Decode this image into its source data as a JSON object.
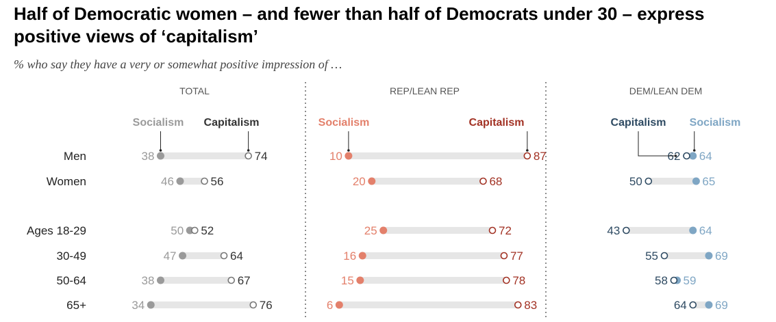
{
  "title": "Half of Democratic women – and fewer than half of Democrats under 30 – express positive views of ‘capitalism’",
  "subtitle": "% who say they have a very or somewhat positive impression of …",
  "colors": {
    "total": "#9a9a9a",
    "rep": "#e3806b",
    "rep_dark": "#a23224",
    "dem": "#2e4a62",
    "dem_light": "#7fa6c4",
    "bar": "#e6e6e6",
    "label": "#222222",
    "divider": "#666666"
  },
  "chart_data": {
    "type": "dot-plot",
    "categories": [
      "Men",
      "Women",
      "Ages 18-29",
      "30-49",
      "50-64",
      "65+"
    ],
    "panels": [
      {
        "id": "total",
        "title": "TOTAL",
        "series": [
          {
            "name": "Socialism",
            "values": [
              38,
              46,
              50,
              47,
              38,
              34
            ]
          },
          {
            "name": "Capitalism",
            "values": [
              74,
              56,
              52,
              64,
              67,
              76
            ]
          }
        ]
      },
      {
        "id": "rep",
        "title": "REP/LEAN REP",
        "series": [
          {
            "name": "Socialism",
            "values": [
              10,
              20,
              25,
              16,
              15,
              6
            ]
          },
          {
            "name": "Capitalism",
            "values": [
              87,
              68,
              72,
              77,
              78,
              83
            ]
          }
        ]
      },
      {
        "id": "dem",
        "title": "DEM/LEAN DEM",
        "series": [
          {
            "name": "Capitalism",
            "values": [
              62,
              50,
              43,
              55,
              58,
              64
            ]
          },
          {
            "name": "Socialism",
            "values": [
              64,
              65,
              64,
              69,
              59,
              69
            ]
          }
        ]
      }
    ]
  }
}
